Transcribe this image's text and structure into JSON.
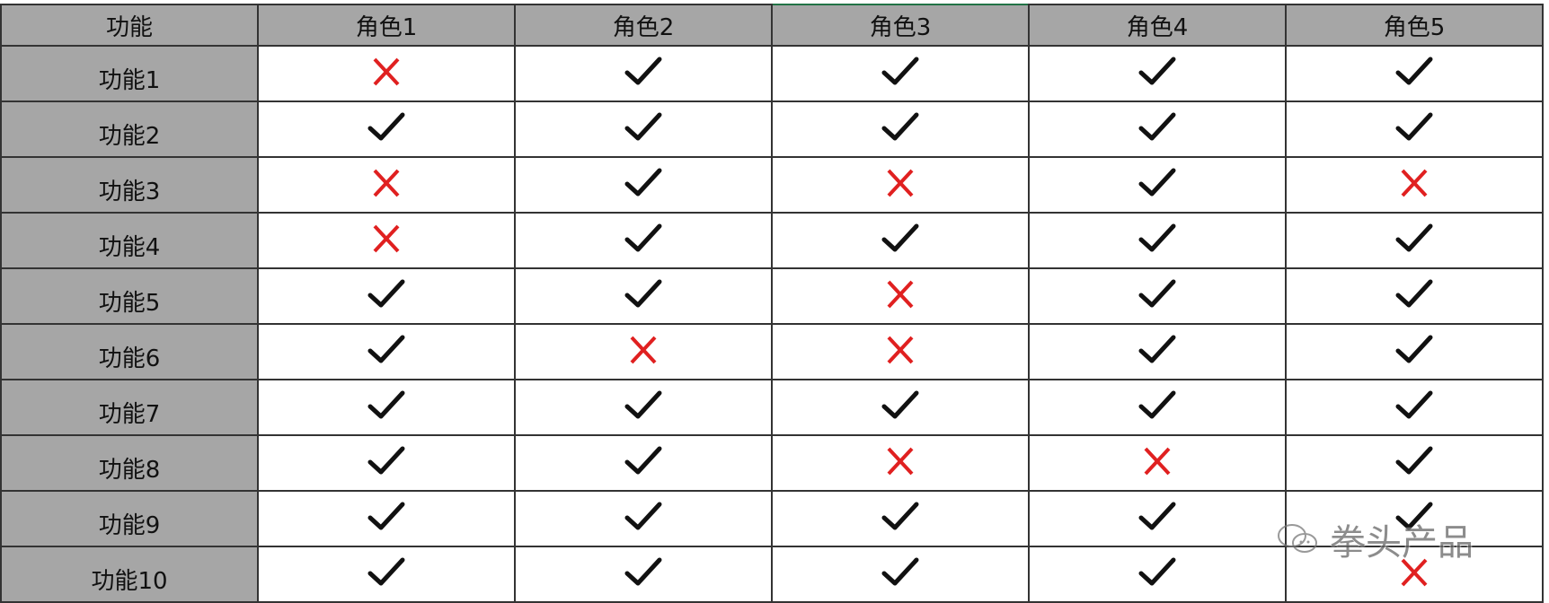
{
  "columns": [
    "功能",
    "角色1",
    "角色2",
    "角色3",
    "角色4",
    "角色5"
  ],
  "rows": [
    {
      "label": "功能1",
      "values": [
        false,
        true,
        true,
        true,
        true
      ]
    },
    {
      "label": "功能2",
      "values": [
        true,
        true,
        true,
        true,
        true
      ]
    },
    {
      "label": "功能3",
      "values": [
        false,
        true,
        false,
        true,
        false
      ]
    },
    {
      "label": "功能4",
      "values": [
        false,
        true,
        true,
        true,
        true
      ]
    },
    {
      "label": "功能5",
      "values": [
        true,
        true,
        false,
        true,
        true
      ]
    },
    {
      "label": "功能6",
      "values": [
        true,
        false,
        false,
        true,
        true
      ]
    },
    {
      "label": "功能7",
      "values": [
        true,
        true,
        true,
        true,
        true
      ]
    },
    {
      "label": "功能8",
      "values": [
        true,
        true,
        false,
        false,
        true
      ]
    },
    {
      "label": "功能9",
      "values": [
        true,
        true,
        true,
        true,
        true
      ]
    },
    {
      "label": "功能10",
      "values": [
        true,
        true,
        true,
        true,
        false
      ]
    }
  ],
  "icons": {
    "true": "checkmark-icon",
    "false": "cross-icon"
  },
  "colors": {
    "header_bg": "#a6a6a6",
    "check": "#111111",
    "cross": "#e02020"
  },
  "watermark": "拳头产品"
}
